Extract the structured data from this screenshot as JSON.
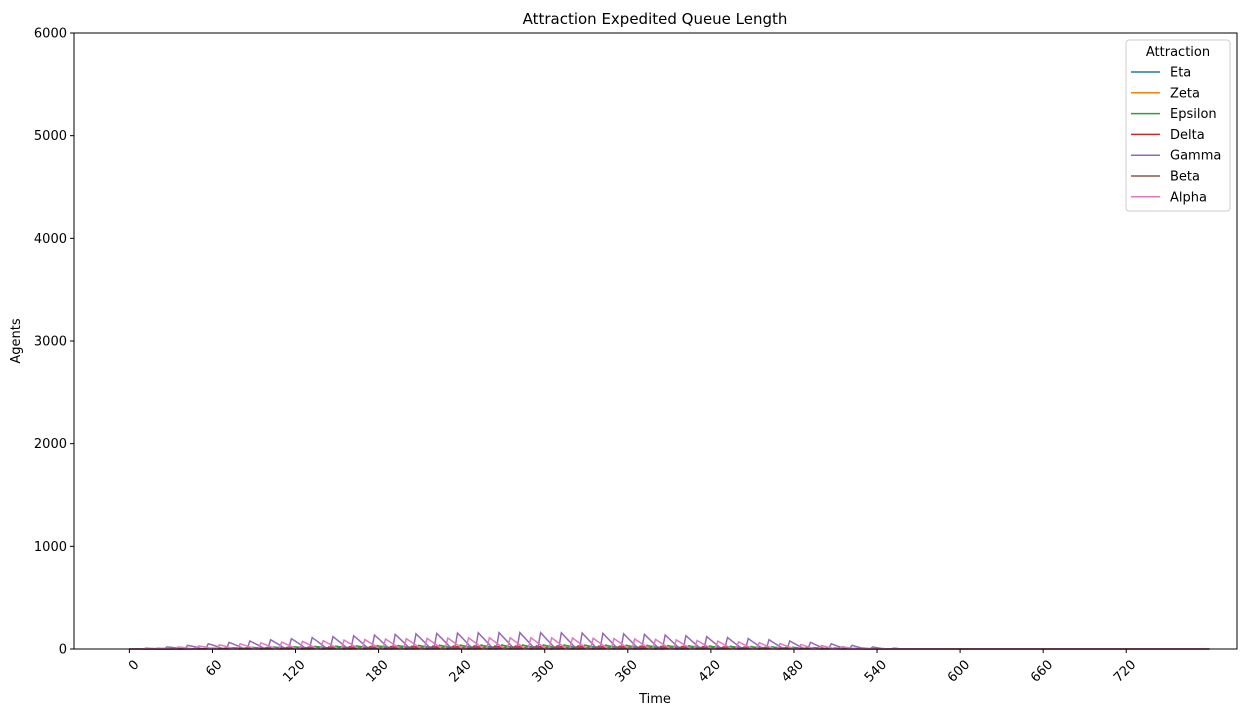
{
  "chart_data": {
    "type": "line",
    "title": "Attraction Expedited Queue Length",
    "xlabel": "Time",
    "ylabel": "Agents",
    "xlim": [
      -40,
      800
    ],
    "ylim": [
      0,
      6000
    ],
    "xticks": [
      0,
      60,
      120,
      180,
      240,
      300,
      360,
      420,
      480,
      540,
      600,
      660,
      720
    ],
    "yticks": [
      0,
      1000,
      2000,
      3000,
      4000,
      5000,
      6000
    ],
    "x_range": [
      0,
      780
    ],
    "grid": false,
    "legend": {
      "title": "Attraction",
      "placement": "top-right"
    },
    "series": [
      {
        "name": "Eta",
        "color": "#1f77b4",
        "peak_max": 30,
        "period": 15,
        "phase": 0,
        "active": [
          30,
          545
        ]
      },
      {
        "name": "Zeta",
        "color": "#ff7f0e",
        "peak_max": 25,
        "period": 15,
        "phase": 5,
        "active": [
          30,
          545
        ]
      },
      {
        "name": "Epsilon",
        "color": "#2ca02c",
        "peak_max": 40,
        "period": 15,
        "phase": 3,
        "active": [
          30,
          545
        ]
      },
      {
        "name": "Delta",
        "color": "#d62728",
        "peak_max": 30,
        "period": 15,
        "phase": 8,
        "active": [
          30,
          545
        ]
      },
      {
        "name": "Gamma",
        "color": "#9467bd",
        "peak_max": 160,
        "period": 15,
        "phase": 0,
        "active": [
          10,
          555
        ]
      },
      {
        "name": "Beta",
        "color": "#8c564b",
        "peak_max": 20,
        "period": 15,
        "phase": 10,
        "active": [
          30,
          545
        ]
      },
      {
        "name": "Alpha",
        "color": "#e377c2",
        "peak_max": 110,
        "period": 15,
        "phase": 7,
        "active": [
          10,
          545
        ]
      }
    ]
  }
}
